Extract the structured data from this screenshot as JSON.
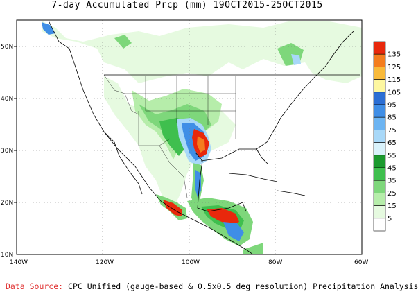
{
  "title": "7-day Accumulated Prcp (mm) 19OCT2015-25OCT2015",
  "footer": {
    "source_label": "Data Source:",
    "source_text": "CPC Unified (gauge-based & 0.5x0.5 deg resolution) Precipitation Analysis"
  },
  "map": {
    "lon_range": [
      -140,
      -60
    ],
    "lat_range": [
      10,
      55
    ],
    "lat_ticks": [
      "50N",
      "40N",
      "30N",
      "20N",
      "10N"
    ],
    "lon_ticks": [
      "140W",
      "120W",
      "100W",
      "80W",
      "60W"
    ]
  },
  "colorbar": {
    "labels": [
      "135",
      "125",
      "115",
      "105",
      "95",
      "85",
      "75",
      "65",
      "55",
      "45",
      "35",
      "25",
      "15",
      "5"
    ],
    "colors": [
      "#e8280c",
      "#f47d1e",
      "#f9ba3a",
      "#fdf7a0",
      "#2b6ed4",
      "#3f8ee6",
      "#6cb4f2",
      "#a8d8f8",
      "#d9f2fb",
      "#1b9a2e",
      "#3fbf4e",
      "#7ed77b",
      "#b6edaa",
      "#e6fae0",
      "#ffffff"
    ]
  }
}
